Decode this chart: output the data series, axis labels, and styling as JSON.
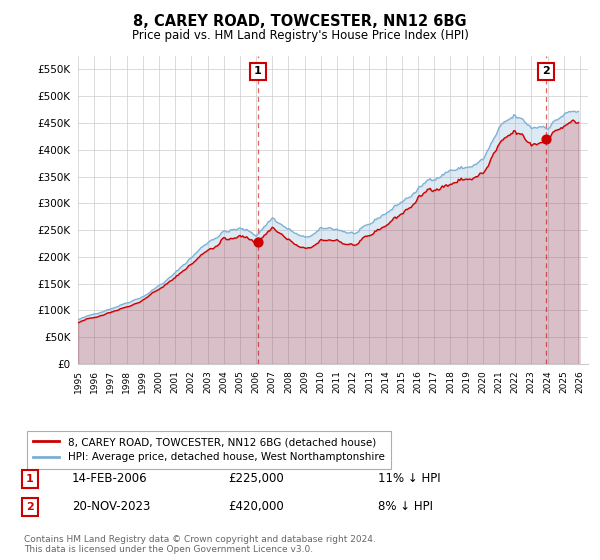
{
  "title": "8, CAREY ROAD, TOWCESTER, NN12 6BG",
  "subtitle": "Price paid vs. HM Land Registry's House Price Index (HPI)",
  "legend_label_red": "8, CAREY ROAD, TOWCESTER, NN12 6BG (detached house)",
  "legend_label_blue": "HPI: Average price, detached house, West Northamptonshire",
  "annotation1_date": "14-FEB-2006",
  "annotation1_price": "£225,000",
  "annotation1_hpi": "11% ↓ HPI",
  "annotation2_date": "20-NOV-2023",
  "annotation2_price": "£420,000",
  "annotation2_hpi": "8% ↓ HPI",
  "footer": "Contains HM Land Registry data © Crown copyright and database right 2024.\nThis data is licensed under the Open Government Licence v3.0.",
  "red_color": "#cc0000",
  "blue_color": "#7bafd4",
  "blue_fill_color": "#d6e8f5",
  "vline_color": "#cc0000",
  "ylim_min": 0,
  "ylim_max": 575000,
  "p1_year": 2006.12,
  "p1_price": 225000,
  "p2_year": 2023.9,
  "p2_price": 420000
}
